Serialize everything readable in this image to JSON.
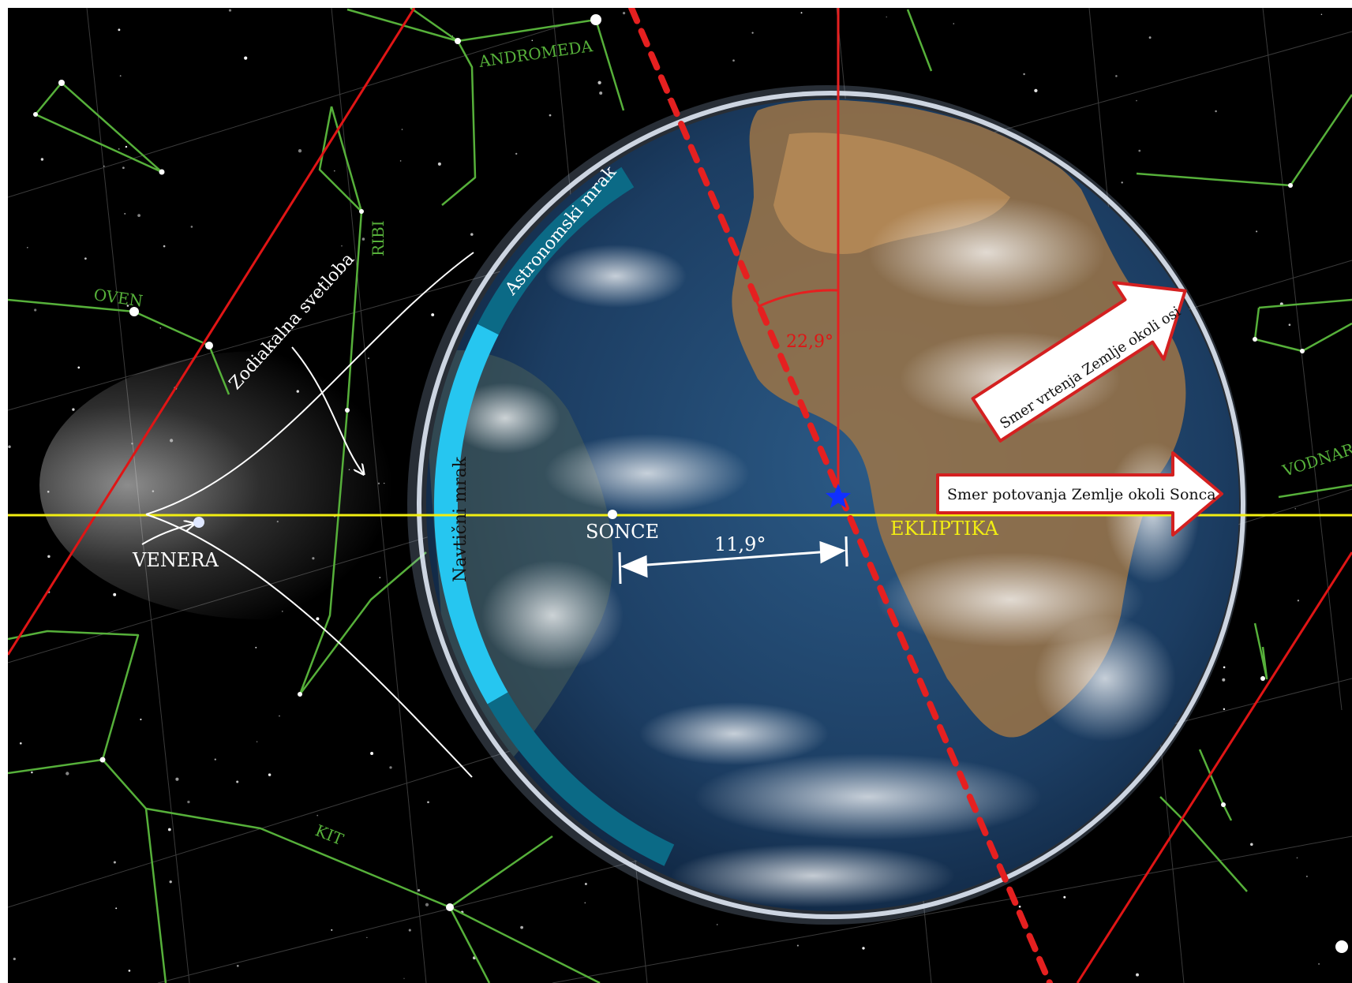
{
  "colors": {
    "sky": "#000000",
    "grid": "#5a5a5a",
    "constellation": "#56b03a",
    "zodiac_band": "#e01515",
    "ecliptic": "#f2ee12",
    "axis": "#e01515",
    "astronomical_twilight": "#0b6a86",
    "nautical_twilight": "#26c6f0",
    "arrow_fill": "#ffffff",
    "arrow_border": "#d42020",
    "star_marker": "#1030ff",
    "ocean": "#1d3e63",
    "land": "#a07a4d"
  },
  "labels": {
    "andromeda": "ANDROMEDA",
    "ribi": "RIBI",
    "oven": "OVEN",
    "kit": "KIT",
    "vodnar": "VODNAR",
    "zodiacal_light": "Zodiakalna svetloba",
    "venera": "VENERA",
    "sonce": "SONCE",
    "ekliptika": "EKLIPTIKA",
    "astronomical_twilight": "Astronomski mrak",
    "nautical_twilight": "Navtični mrak",
    "tilt_angle": "22,9°",
    "sun_distance": "11,9°",
    "rotation_arrow": "Smer vrtenja Zemlje okoli osi",
    "orbit_arrow": "Smer potovanja Zemlje okoli Sonca"
  },
  "icons": {
    "observer": "star-marker-icon",
    "sun": "sun-dot-icon",
    "venus": "venus-dot-icon"
  }
}
